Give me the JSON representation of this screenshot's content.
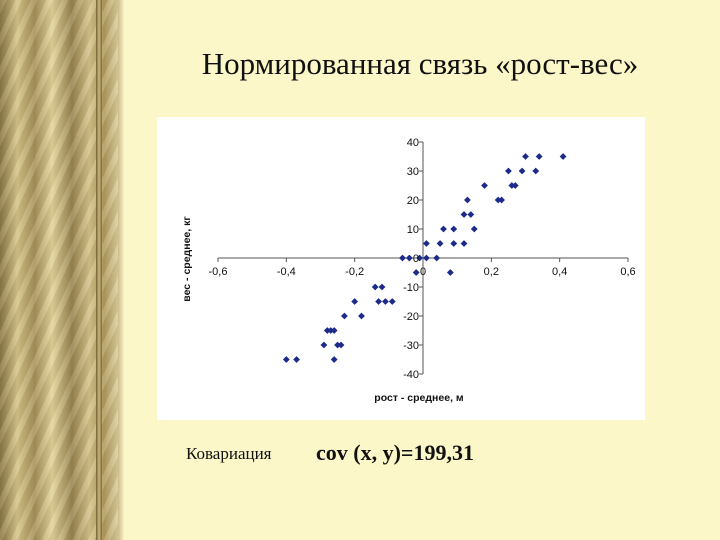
{
  "slide": {
    "title": "Нормированная связь «рост-вес»",
    "covariance_label": "Ковариация",
    "covariance_formula": "cov (x, y)=199,31"
  },
  "colors": {
    "point": "#1c2a8a",
    "background": "#fbf7c8",
    "panel": "#ffffff"
  },
  "chart_data": {
    "type": "scatter",
    "title": "",
    "xlabel": "рост - среднее, м",
    "ylabel": "вес - среднее, кг",
    "xlim": [
      -0.6,
      0.6
    ],
    "ylim": [
      -40,
      40
    ],
    "x_ticks": [
      -0.6,
      -0.4,
      -0.2,
      0,
      0.2,
      0.4,
      0.6
    ],
    "x_tick_labels": [
      "-0,6",
      "-0,4",
      "-0,2",
      "0",
      "0,2",
      "0,4",
      "0,6"
    ],
    "y_ticks": [
      -40,
      -30,
      -20,
      -10,
      0,
      10,
      20,
      30,
      40
    ],
    "y_tick_labels": [
      "-40",
      "-30",
      "-20",
      "-10",
      "0",
      "10",
      "20",
      "30",
      "40"
    ],
    "grid": false,
    "legend": "none",
    "points": [
      [
        -0.4,
        -35
      ],
      [
        -0.37,
        -35
      ],
      [
        -0.29,
        -30
      ],
      [
        -0.28,
        -25
      ],
      [
        -0.27,
        -25
      ],
      [
        -0.26,
        -25
      ],
      [
        -0.26,
        -35
      ],
      [
        -0.25,
        -30
      ],
      [
        -0.24,
        -30
      ],
      [
        -0.23,
        -20
      ],
      [
        -0.2,
        -15
      ],
      [
        -0.18,
        -20
      ],
      [
        -0.14,
        -10
      ],
      [
        -0.13,
        -15
      ],
      [
        -0.12,
        -10
      ],
      [
        -0.11,
        -15
      ],
      [
        -0.09,
        -15
      ],
      [
        -0.06,
        0
      ],
      [
        -0.04,
        0
      ],
      [
        -0.02,
        -5
      ],
      [
        -0.01,
        0
      ],
      [
        0.01,
        0
      ],
      [
        0.01,
        5
      ],
      [
        0.04,
        0
      ],
      [
        0.05,
        5
      ],
      [
        0.06,
        10
      ],
      [
        0.08,
        -5
      ],
      [
        0.09,
        10
      ],
      [
        0.09,
        5
      ],
      [
        0.12,
        5
      ],
      [
        0.12,
        15
      ],
      [
        0.13,
        20
      ],
      [
        0.14,
        15
      ],
      [
        0.15,
        10
      ],
      [
        0.18,
        25
      ],
      [
        0.22,
        20
      ],
      [
        0.23,
        20
      ],
      [
        0.25,
        30
      ],
      [
        0.26,
        25
      ],
      [
        0.27,
        25
      ],
      [
        0.29,
        30
      ],
      [
        0.3,
        35
      ],
      [
        0.33,
        30
      ],
      [
        0.34,
        35
      ],
      [
        0.41,
        35
      ]
    ]
  }
}
